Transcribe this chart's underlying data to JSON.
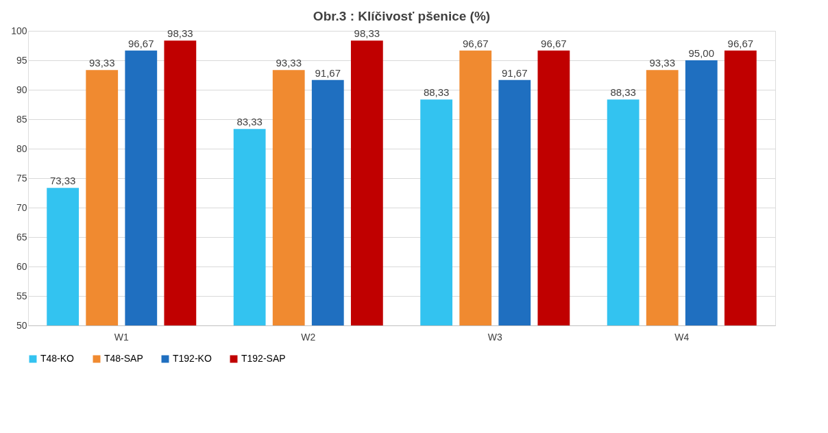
{
  "chart_data": {
    "type": "bar",
    "title": "Obr.3 : Klíčivosť pšenice  (%)",
    "categories": [
      "W1",
      "W2",
      "W3",
      "W4"
    ],
    "series": [
      {
        "name": "T48-KO",
        "color": "#33c3f0",
        "values": [
          73.33,
          83.33,
          88.33,
          88.33
        ],
        "value_labels": [
          "73,33",
          "83,33",
          "88,33",
          "88,33"
        ]
      },
      {
        "name": "T48-SAP",
        "color": "#f08a30",
        "values": [
          93.33,
          93.33,
          96.67,
          93.33
        ],
        "value_labels": [
          "93,33",
          "93,33",
          "96,67",
          "93,33"
        ]
      },
      {
        "name": "T192-KO",
        "color": "#1f6fc0",
        "values": [
          96.67,
          91.67,
          91.67,
          95.0
        ],
        "value_labels": [
          "96,67",
          "91,67",
          "91,67",
          "95,00"
        ]
      },
      {
        "name": "T192-SAP",
        "color": "#c00000",
        "values": [
          98.33,
          98.33,
          96.67,
          96.67
        ],
        "value_labels": [
          "98,33",
          "98,33",
          "96,67",
          "96,67"
        ]
      }
    ],
    "ylim": [
      50,
      100
    ],
    "yticks": [
      50,
      55,
      60,
      65,
      70,
      75,
      80,
      85,
      90,
      95,
      100
    ],
    "grid": "y",
    "legend": "bottom"
  }
}
